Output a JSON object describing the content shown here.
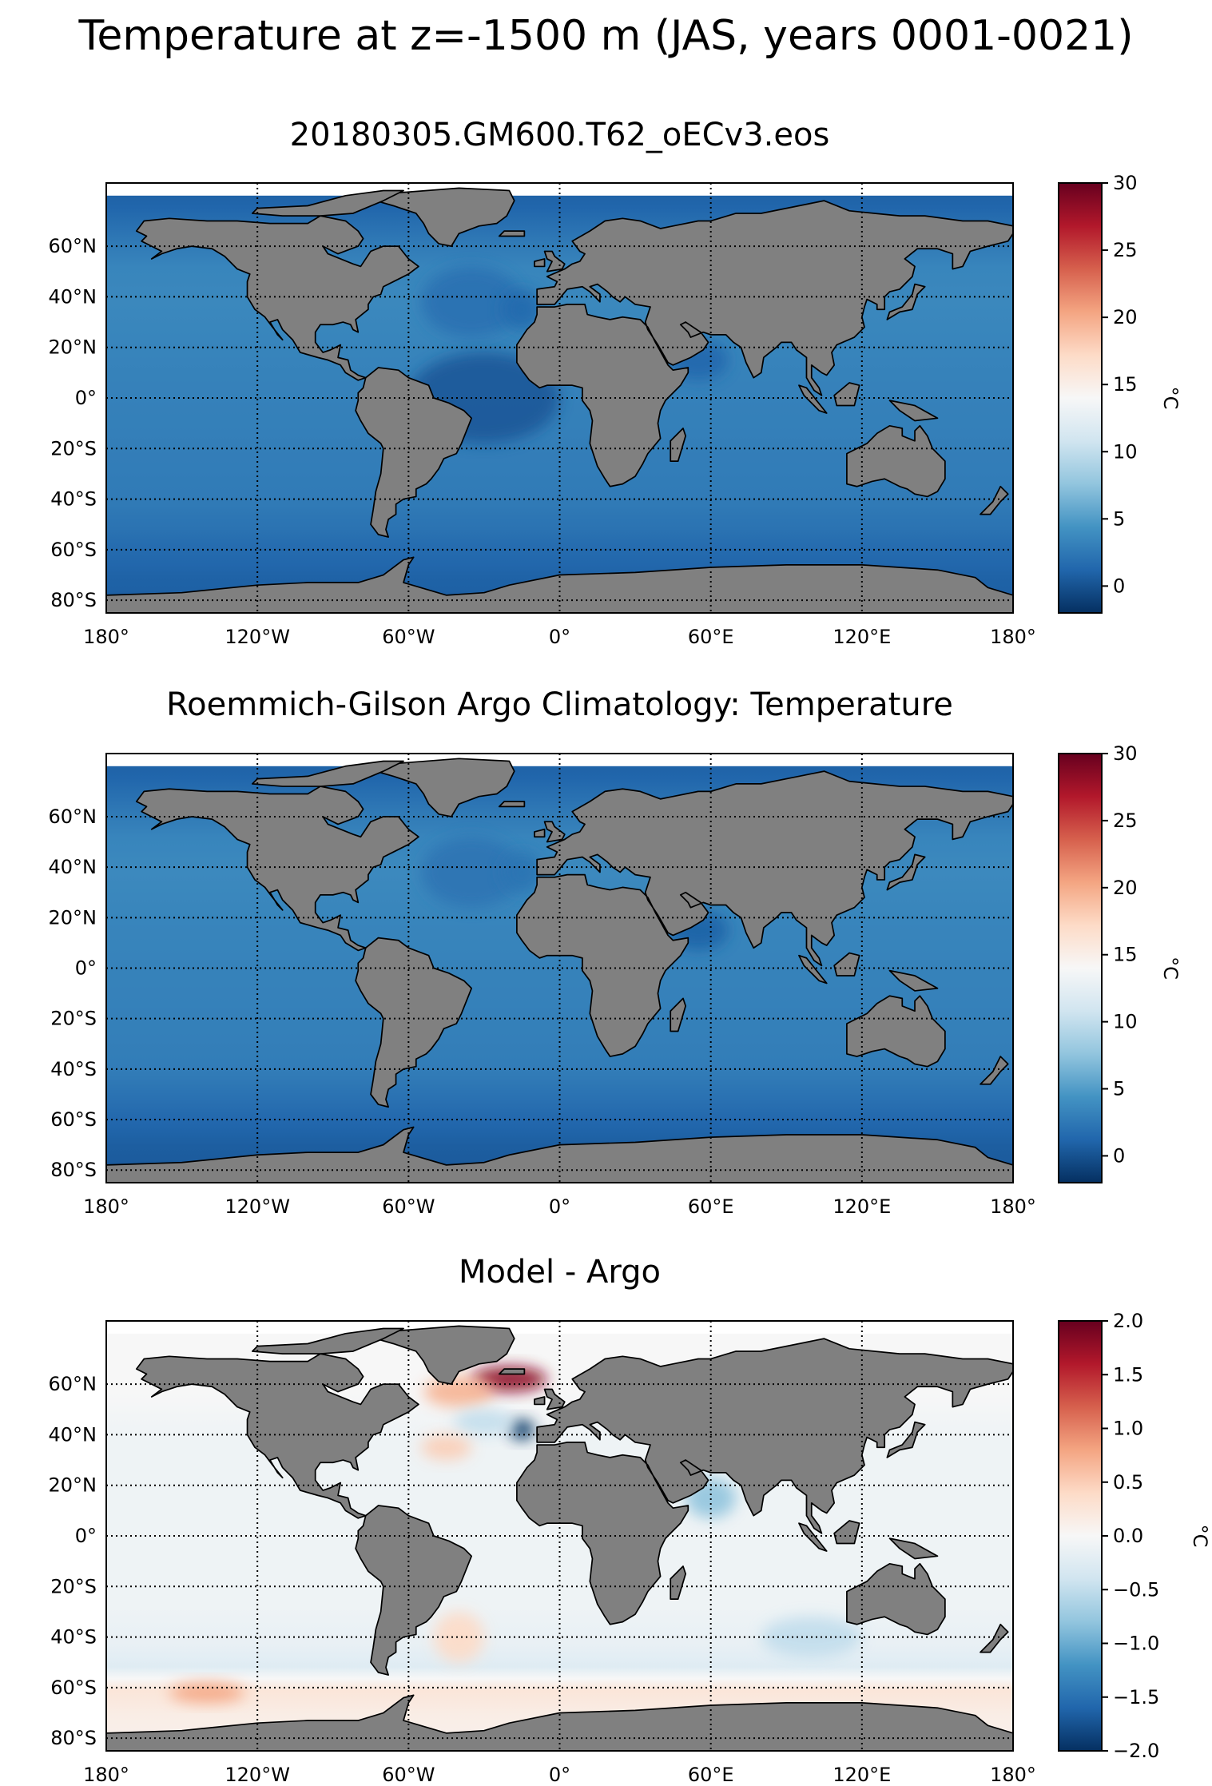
{
  "figure": {
    "suptitle": "Temperature at z=-1500 m (JAS, years 0001-0021)"
  },
  "colors": {
    "land": "#808080",
    "missing": "#ffffff",
    "cmap": [
      "#053061",
      "#2166ac",
      "#4393c3",
      "#92c5de",
      "#d1e5f0",
      "#f7f7f7",
      "#fddbc7",
      "#f4a582",
      "#d6604d",
      "#b2182b",
      "#67001f"
    ]
  },
  "chart_data": [
    {
      "type": "heatmap",
      "title": "20180305.GM600.T62_oECv3.eos",
      "projection": "PlateCarree",
      "xlim": [
        -180,
        180
      ],
      "ylim": [
        -85,
        85
      ],
      "xticks": [
        -180,
        -120,
        -60,
        0,
        60,
        120,
        180
      ],
      "xtick_labels": [
        "180°",
        "120°W",
        "60°W",
        "0°",
        "60°E",
        "120°E",
        "180°"
      ],
      "yticks": [
        -80,
        -60,
        -40,
        -20,
        0,
        20,
        40,
        60
      ],
      "ytick_labels": [
        "80°S",
        "60°S",
        "40°S",
        "20°S",
        "0°",
        "20°N",
        "40°N",
        "60°N"
      ],
      "grid": true,
      "colorbar": {
        "label": "°C",
        "vmin": -2,
        "vmax": 30,
        "ticks": [
          0,
          5,
          10,
          15,
          20,
          25,
          30
        ],
        "tick_labels": [
          "0",
          "5",
          "10",
          "15",
          "20",
          "25",
          "30"
        ]
      },
      "field": {
        "lat_profile": [
          [
            -85,
            0.8
          ],
          [
            -75,
            1.0
          ],
          [
            -65,
            1.5
          ],
          [
            -55,
            2.1
          ],
          [
            -45,
            2.6
          ],
          [
            -30,
            2.8
          ],
          [
            -15,
            3.0
          ],
          [
            0,
            3.1
          ],
          [
            20,
            3.3
          ],
          [
            40,
            3.6
          ],
          [
            55,
            3.4
          ],
          [
            65,
            2.6
          ],
          [
            80,
            1.2
          ],
          [
            85,
            1.0
          ]
        ],
        "anomalies": [
          {
            "lon": -35,
            "lat": 38,
            "dlon": 20,
            "dlat": 14,
            "value": 2.0
          },
          {
            "lon": -15,
            "lat": 35,
            "dlon": 8,
            "dlat": 8,
            "value": 1.5
          },
          {
            "lon": 55,
            "lat": 15,
            "dlon": 12,
            "dlat": 8,
            "value": 1.3
          },
          {
            "lon": -30,
            "lat": 0,
            "dlon": 30,
            "dlat": 18,
            "value": 0.4
          }
        ]
      }
    },
    {
      "type": "heatmap",
      "title": "Roemmich-Gilson Argo Climatology: Temperature",
      "projection": "PlateCarree",
      "xlim": [
        -180,
        180
      ],
      "ylim": [
        -85,
        85
      ],
      "xticks": [
        -180,
        -120,
        -60,
        0,
        60,
        120,
        180
      ],
      "xtick_labels": [
        "180°",
        "120°W",
        "60°W",
        "0°",
        "60°E",
        "120°E",
        "180°"
      ],
      "yticks": [
        -80,
        -60,
        -40,
        -20,
        0,
        20,
        40,
        60
      ],
      "ytick_labels": [
        "80°S",
        "60°S",
        "40°S",
        "20°S",
        "0°",
        "20°N",
        "40°N",
        "60°N"
      ],
      "grid": true,
      "colorbar": {
        "label": "°C",
        "vmin": -2,
        "vmax": 30,
        "ticks": [
          0,
          5,
          10,
          15,
          20,
          25,
          30
        ],
        "tick_labels": [
          "0",
          "5",
          "10",
          "15",
          "20",
          "25",
          "30"
        ]
      },
      "field": {
        "lat_profile": [
          [
            -85,
            0.5
          ],
          [
            -75,
            0.7
          ],
          [
            -65,
            1.3
          ],
          [
            -55,
            2.0
          ],
          [
            -45,
            2.7
          ],
          [
            -30,
            3.0
          ],
          [
            -15,
            3.1
          ],
          [
            0,
            3.2
          ],
          [
            20,
            3.4
          ],
          [
            40,
            3.7
          ],
          [
            55,
            3.4
          ],
          [
            65,
            2.6
          ],
          [
            80,
            1.2
          ],
          [
            85,
            1.0
          ]
        ],
        "anomalies": [
          {
            "lon": -35,
            "lat": 38,
            "dlon": 20,
            "dlat": 14,
            "value": 2.3
          },
          {
            "lon": -15,
            "lat": 38,
            "dlon": 8,
            "dlat": 8,
            "value": 2.2
          },
          {
            "lon": 55,
            "lat": 15,
            "dlon": 12,
            "dlat": 8,
            "value": 1.0
          }
        ]
      }
    },
    {
      "type": "heatmap",
      "title": "Model - Argo",
      "projection": "PlateCarree",
      "xlim": [
        -180,
        180
      ],
      "ylim": [
        -85,
        85
      ],
      "xticks": [
        -180,
        -120,
        -60,
        0,
        60,
        120,
        180
      ],
      "xtick_labels": [
        "180°",
        "120°W",
        "60°W",
        "0°",
        "60°E",
        "120°E",
        "180°"
      ],
      "yticks": [
        -80,
        -60,
        -40,
        -20,
        0,
        20,
        40,
        60
      ],
      "ytick_labels": [
        "80°S",
        "60°S",
        "40°S",
        "20°S",
        "0°",
        "20°N",
        "40°N",
        "60°N"
      ],
      "grid": true,
      "colorbar": {
        "label": "°C",
        "vmin": -2.0,
        "vmax": 2.0,
        "ticks": [
          -2.0,
          -1.5,
          -1.0,
          -0.5,
          0.0,
          0.5,
          1.0,
          1.5,
          2.0
        ],
        "tick_labels": [
          "−2.0",
          "−1.5",
          "−1.0",
          "−0.5",
          "0.0",
          "0.5",
          "1.0",
          "1.5",
          "2.0"
        ]
      },
      "field": {
        "lat_profile": [
          [
            -85,
            0.1
          ],
          [
            -75,
            0.15
          ],
          [
            -65,
            0.25
          ],
          [
            -55,
            -0.25
          ],
          [
            -45,
            -0.15
          ],
          [
            -30,
            -0.1
          ],
          [
            -15,
            -0.1
          ],
          [
            0,
            -0.1
          ],
          [
            20,
            -0.1
          ],
          [
            40,
            -0.1
          ],
          [
            60,
            0.0
          ],
          [
            85,
            0.0
          ]
        ],
        "anomalies": [
          {
            "lon": -20,
            "lat": 62,
            "dlon": 15,
            "dlat": 5,
            "value": 1.8
          },
          {
            "lon": -40,
            "lat": 57,
            "dlon": 14,
            "dlat": 6,
            "value": 0.7
          },
          {
            "lon": -15,
            "lat": 42,
            "dlon": 5,
            "dlat": 4,
            "value": -2.2
          },
          {
            "lon": -30,
            "lat": 45,
            "dlon": 12,
            "dlat": 5,
            "value": -0.5
          },
          {
            "lon": -45,
            "lat": 35,
            "dlon": 10,
            "dlat": 5,
            "value": 0.5
          },
          {
            "lon": 60,
            "lat": 15,
            "dlon": 10,
            "dlat": 8,
            "value": -0.8
          },
          {
            "lon": -140,
            "lat": -62,
            "dlon": 15,
            "dlat": 4,
            "value": 0.8
          },
          {
            "lon": -40,
            "lat": -40,
            "dlon": 10,
            "dlat": 10,
            "value": 0.4
          },
          {
            "lon": 100,
            "lat": -40,
            "dlon": 20,
            "dlat": 8,
            "value": -0.5
          }
        ]
      }
    }
  ]
}
